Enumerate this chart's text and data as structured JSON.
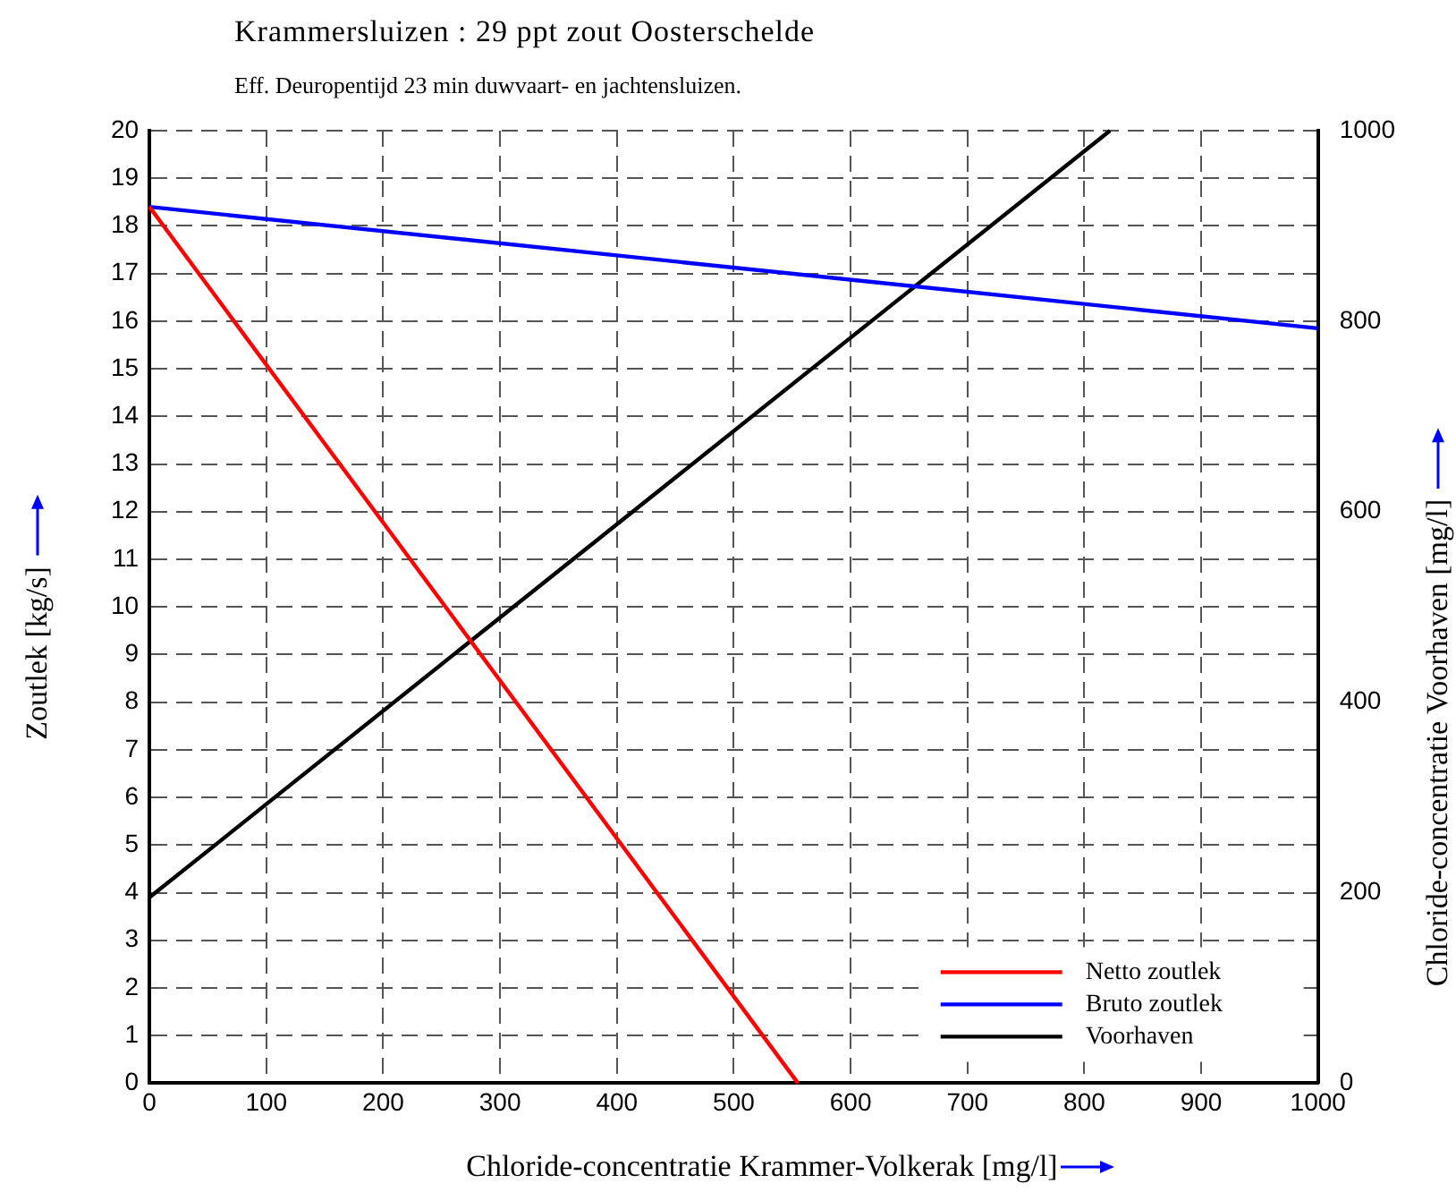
{
  "chart_data": {
    "type": "line",
    "title": "Krammersluizen : 29 ppt zout Oosterschelde",
    "subtitle": "Eff. Deuropentijd 23 min duwvaart- en jachtensluizen.",
    "xlabel": "Chloride-concentratie Krammer-Volkerak [mg/l]",
    "ylabel": "Zoutlek [kg/s]",
    "y2label": "Chloride-concentratie Voorhaven [mg/l]",
    "series": [
      {
        "name": "Netto zoutlek",
        "color": "#ff0000",
        "x": [
          0,
          555
        ],
        "values": [
          18.4,
          0
        ]
      },
      {
        "name": "Bruto zoutlek",
        "color": "#0000ff",
        "x": [
          0,
          1000
        ],
        "values": [
          18.4,
          15.85
        ]
      },
      {
        "name": "Voorhaven",
        "color": "#000000",
        "x": [
          0,
          822
        ],
        "values": [
          195,
          1000
        ],
        "axis": "y2"
      }
    ],
    "xlim": [
      0,
      1000
    ],
    "xticks": [
      0,
      100,
      200,
      300,
      400,
      500,
      600,
      700,
      800,
      900,
      1000
    ],
    "ylim": [
      0,
      20
    ],
    "yticks": [
      0,
      1,
      2,
      3,
      4,
      5,
      6,
      7,
      8,
      9,
      10,
      11,
      12,
      13,
      14,
      15,
      16,
      17,
      18,
      19,
      20
    ],
    "y2lim": [
      0,
      1000
    ],
    "y2ticks": [
      0,
      200,
      400,
      600,
      800,
      1000
    ],
    "grid": true,
    "legend": "bottom right",
    "marker": "none",
    "line_style": "solid"
  }
}
